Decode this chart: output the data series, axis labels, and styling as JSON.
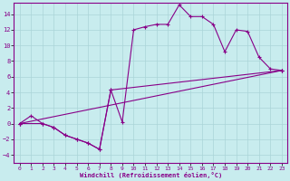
{
  "xlabel": "Windchill (Refroidissement éolien,°C)",
  "xlim": [
    -0.5,
    23.5
  ],
  "ylim": [
    -5,
    15.5
  ],
  "xticks": [
    0,
    1,
    2,
    3,
    4,
    5,
    6,
    7,
    8,
    9,
    10,
    11,
    12,
    13,
    14,
    15,
    16,
    17,
    18,
    19,
    20,
    21,
    22,
    23
  ],
  "yticks": [
    -4,
    -2,
    0,
    2,
    4,
    6,
    8,
    10,
    12,
    14
  ],
  "background_color": "#c8ecee",
  "grid_color": "#aad4d8",
  "line_color": "#880088",
  "data_x": [
    0,
    1,
    2,
    3,
    4,
    5,
    6,
    7,
    8,
    9,
    10,
    11,
    12,
    13,
    14,
    15,
    16,
    17,
    18,
    19,
    20,
    21,
    22,
    23
  ],
  "data_y": [
    0,
    1,
    0,
    -0.5,
    -1.5,
    -2,
    -2.5,
    -3.3,
    4.3,
    0.2,
    12,
    12.4,
    12.7,
    12.7,
    15.2,
    13.7,
    13.7,
    12.7,
    9.2,
    12,
    11.8,
    8.5,
    7,
    6.8
  ],
  "line2_x": [
    0,
    23
  ],
  "line2_y": [
    0,
    6.8
  ],
  "line3_x": [
    0,
    2,
    3,
    4,
    5,
    6,
    7,
    8,
    23
  ],
  "line3_y": [
    0,
    0,
    -0.5,
    -1.5,
    -2,
    -2.5,
    -3.3,
    4.3,
    6.8
  ]
}
